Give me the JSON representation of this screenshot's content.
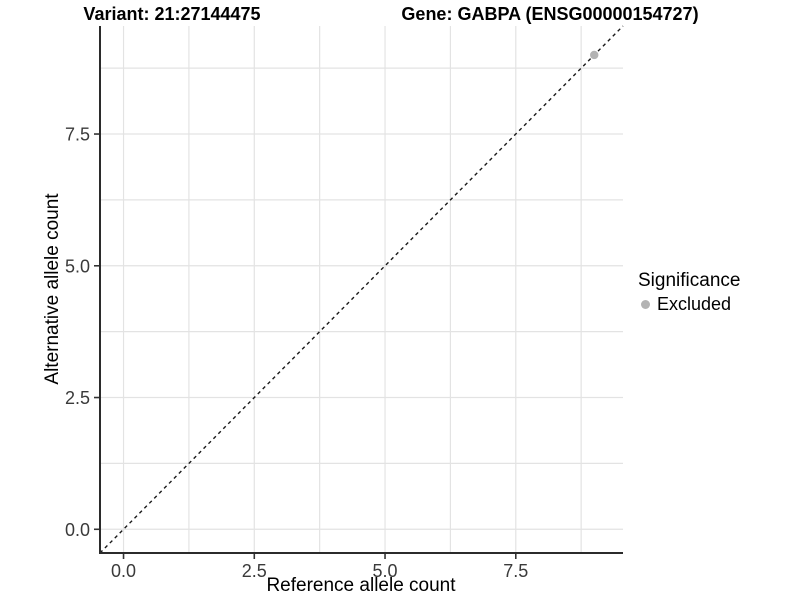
{
  "titles": {
    "left": "Variant: 21:27144475",
    "right": "Gene: GABPA (ENSG00000154727)"
  },
  "chart_data": {
    "type": "scatter",
    "xlabel": "Reference allele count",
    "ylabel": "Alternative allele count",
    "xlim": [
      -0.45,
      9.55
    ],
    "ylim": [
      -0.45,
      9.55
    ],
    "x_ticks": {
      "values": [
        0,
        2.5,
        5,
        7.5
      ],
      "labels": [
        "0.0",
        "2.5",
        "5.0",
        "7.5"
      ]
    },
    "y_ticks": {
      "values": [
        0,
        2.5,
        5,
        7.5
      ],
      "labels": [
        "0.0",
        "2.5",
        "5.0",
        "7.5"
      ]
    },
    "grid": "on",
    "grid_step": 1.25,
    "reference_line": {
      "type": "abline",
      "slope": 1,
      "intercept": 0,
      "style": "dashed"
    },
    "series": [
      {
        "name": "Excluded",
        "color": "#b3b3b3",
        "points": [
          [
            9,
            9
          ]
        ]
      }
    ],
    "legend": {
      "title": "Significance",
      "position": "right",
      "items": [
        {
          "label": "Excluded",
          "color": "#b3b3b3"
        }
      ]
    }
  },
  "colors": {
    "grid": "#e3e3e3",
    "axis_line": "#2b2b2b",
    "tick_mark": "#333333",
    "tick_label": "#3a3a3a",
    "reference_line": "#1a1a1a",
    "point": "#b3b3b3",
    "background": "#ffffff"
  }
}
